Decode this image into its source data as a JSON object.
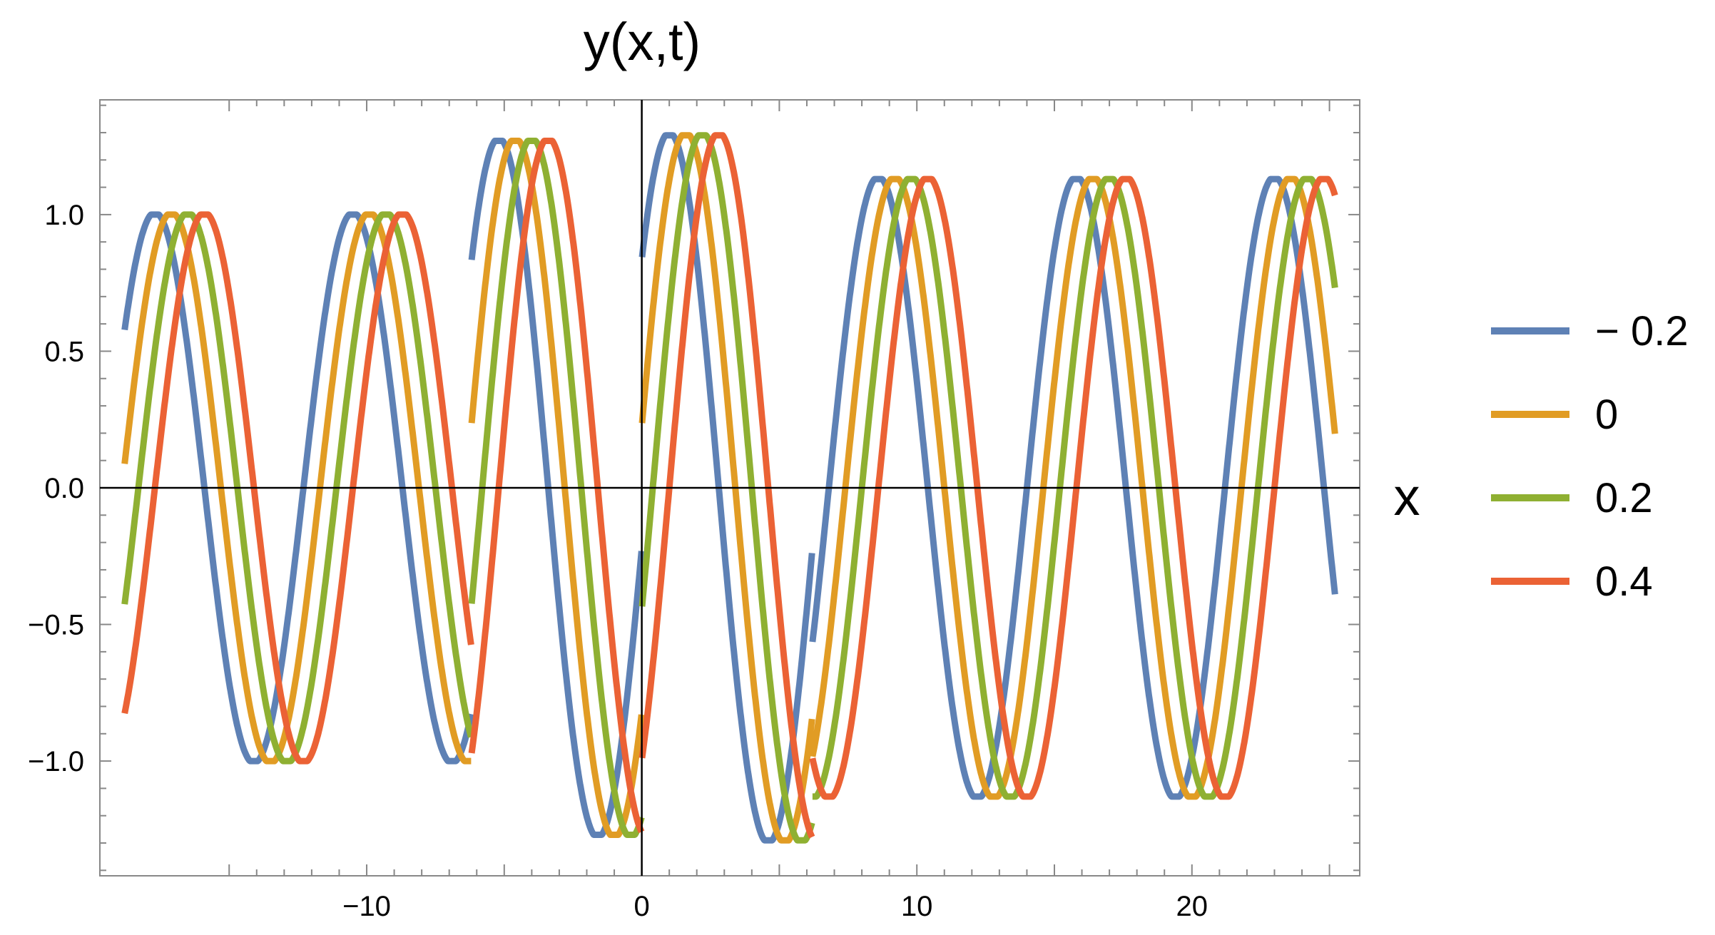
{
  "chart_data": {
    "type": "line",
    "title": "y(x,t)",
    "xlabel": "x",
    "ylabel": "",
    "xlim": [
      -19.7,
      26.1
    ],
    "ylim": [
      -1.42,
      1.42
    ],
    "x_domain": [
      -18.8,
      25.2
    ],
    "x_ticks": [
      -10,
      0,
      10,
      20
    ],
    "x_tick_labels": [
      "−10",
      "0",
      "10",
      "20"
    ],
    "y_ticks": [
      -1.0,
      -0.5,
      0.0,
      0.5,
      1.0
    ],
    "y_tick_labels": [
      "−1.0",
      "−0.5",
      "0.0",
      "0.5",
      "1.0"
    ],
    "grid": false,
    "frame": true,
    "legend_position": "right",
    "line_style": "thick, flat-topped clipped sinusoids",
    "regions": [
      {
        "x_range": [
          -18.8,
          -6.2
        ],
        "amplitude": 1.0,
        "peak_x_for_t0": -17.1
      },
      {
        "x_range": [
          -6.2,
          0.0
        ],
        "amplitude": 1.27,
        "peak_x_for_t0": -4.6
      },
      {
        "x_range": [
          0.0,
          6.2
        ],
        "amplitude": 1.29,
        "peak_x_for_t0": 1.6
      },
      {
        "x_range": [
          6.2,
          25.2
        ],
        "amplitude": 1.13,
        "peak_x_for_t0": 9.2
      }
    ],
    "period": 7.2,
    "series": [
      {
        "name": "− 0.2",
        "t": -0.2,
        "color": "#5E81B5"
      },
      {
        "name": "0",
        "t": 0.0,
        "color": "#E19C24"
      },
      {
        "name": "0.2",
        "t": 0.2,
        "color": "#8FB032"
      },
      {
        "name": "0.4",
        "t": 0.4,
        "color": "#EB6235"
      }
    ]
  }
}
